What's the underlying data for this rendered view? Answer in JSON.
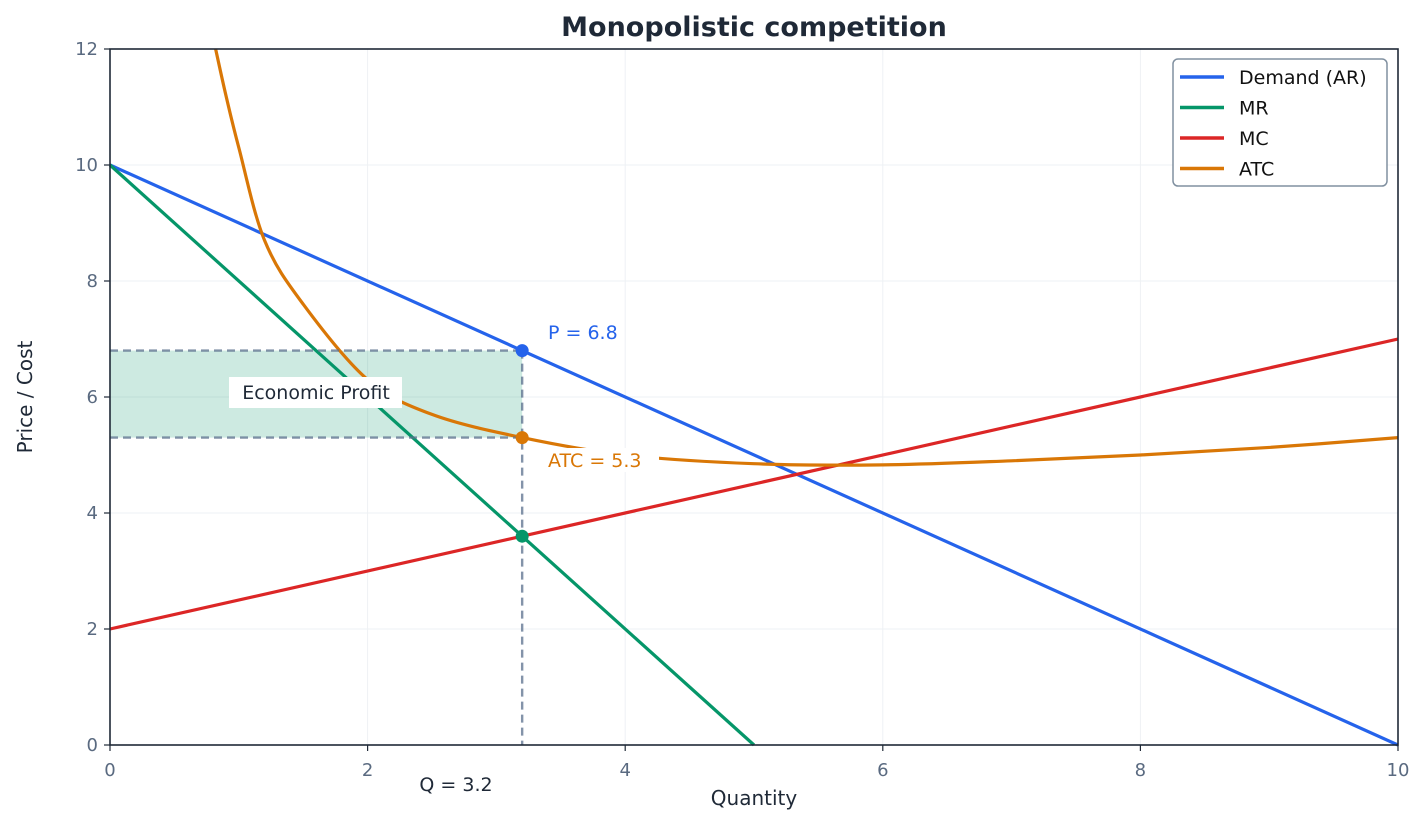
{
  "chart_data": {
    "type": "line",
    "title": "Monopolistic competition",
    "xlabel": "Quantity",
    "ylabel": "Price / Cost",
    "xlim": [
      0,
      10
    ],
    "ylim": [
      0,
      12
    ],
    "xticks": [
      0,
      2,
      4,
      6,
      8,
      10
    ],
    "yticks": [
      0,
      2,
      4,
      6,
      8,
      10,
      12
    ],
    "grid": true,
    "legend_position": "top-right",
    "series": [
      {
        "name": "Demand (AR)",
        "color": "#2563eb",
        "points": [
          [
            0,
            10
          ],
          [
            10,
            0
          ]
        ]
      },
      {
        "name": "MR",
        "color": "#059669",
        "points": [
          [
            0,
            10
          ],
          [
            5,
            0
          ]
        ]
      },
      {
        "name": "MC",
        "color": "#dc2626",
        "points": [
          [
            0,
            2
          ],
          [
            10,
            7
          ]
        ]
      },
      {
        "name": "ATC",
        "color": "#d97706",
        "points": [
          [
            0.82,
            12
          ],
          [
            0.9,
            11.2
          ],
          [
            1.0,
            10.3
          ],
          [
            1.2,
            8.7
          ],
          [
            1.5,
            7.6
          ],
          [
            2.0,
            6.3
          ],
          [
            2.5,
            5.7
          ],
          [
            3.2,
            5.3
          ],
          [
            4.0,
            5.0
          ],
          [
            5.0,
            4.85
          ],
          [
            6.0,
            4.83
          ],
          [
            7.0,
            4.9
          ],
          [
            8.0,
            5.0
          ],
          [
            9.0,
            5.13
          ],
          [
            10.0,
            5.3
          ]
        ]
      }
    ],
    "profit_region": {
      "label": "Economic Profit",
      "x_range": [
        0,
        3.2
      ],
      "y_range": [
        5.3,
        6.8
      ],
      "color": "#059669"
    },
    "equilibrium": {
      "q": 3.2,
      "price": 6.8,
      "atc": 5.3,
      "mr_mc": 3.6
    },
    "annotations": {
      "price_label": "P = 6.8",
      "atc_label": "ATC = 5.3",
      "quantity_label": "Q = 3.2"
    }
  }
}
